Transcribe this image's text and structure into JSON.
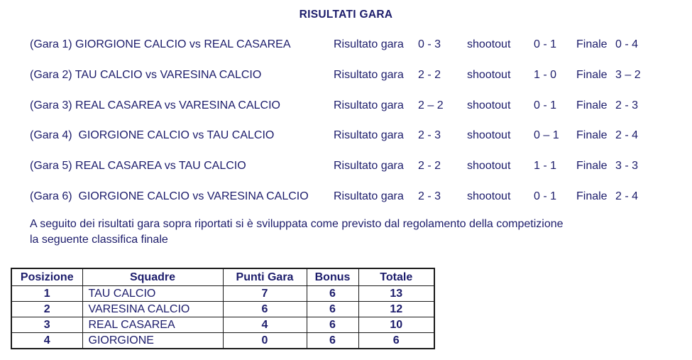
{
  "page": {
    "title": "RISULTATI GARA"
  },
  "games": [
    {
      "label": "(Gara 1) GIORGIONE CALCIO vs REAL CASAREA",
      "result_label": "Risultato gara",
      "result": "0 - 3",
      "shootout_label": "shootout",
      "shootout": "0 - 1",
      "finale_label": "Finale",
      "finale": "0 - 4"
    },
    {
      "label": "(Gara 2) TAU CALCIO vs VARESINA CALCIO",
      "result_label": "Risultato gara",
      "result": "2 - 2",
      "shootout_label": "shootout",
      "shootout": "1 - 0",
      "finale_label": "Finale",
      "finale": "3 – 2"
    },
    {
      "label": "(Gara 3) REAL CASAREA vs VARESINA CALCIO",
      "result_label": "Risultato gara",
      "result": "2 – 2",
      "shootout_label": "shootout",
      "shootout": "0 - 1",
      "finale_label": "Finale",
      "finale": "2 - 3"
    },
    {
      "label": "(Gara 4)  GIORGIONE CALCIO vs TAU CALCIO",
      "result_label": "Risultato gara",
      "result": "2 - 3",
      "shootout_label": "shootout",
      "shootout": "0 – 1",
      "finale_label": "Finale",
      "finale": "2 - 4"
    },
    {
      "label": "(Gara 5) REAL CASAREA vs TAU CALCIO",
      "result_label": "Risultato gara",
      "result": "2 - 2",
      "shootout_label": "shootout",
      "shootout": "1 - 1",
      "finale_label": "Finale",
      "finale": "3 - 3"
    },
    {
      "label": "(Gara 6)  GIORGIONE CALCIO vs VARESINA CALCIO",
      "result_label": "Risultato gara",
      "result": "2 - 3",
      "shootout_label": "shootout",
      "shootout": "0 - 1",
      "finale_label": "Finale",
      "finale": "2 - 4"
    }
  ],
  "note": {
    "line1": "A seguito dei risultati gara sopra riportati si è sviluppata come previsto dal regolamento della competizione",
    "line2": "la seguente classifica finale"
  },
  "standings": {
    "headers": [
      "Posizione",
      "Squadre",
      "Punti Gara",
      "Bonus",
      "Totale"
    ],
    "rows": [
      {
        "posizione": "1",
        "squadra": "TAU CALCIO",
        "punti": "7",
        "bonus": "6",
        "totale": "13"
      },
      {
        "posizione": "2",
        "squadra": "VARESINA CALCIO",
        "punti": "6",
        "bonus": "6",
        "totale": "12"
      },
      {
        "posizione": "3",
        "squadra": "REAL CASAREA",
        "punti": "4",
        "bonus": "6",
        "totale": "10"
      },
      {
        "posizione": "4",
        "squadra": "GIORGIONE",
        "punti": "0",
        "bonus": "6",
        "totale": "6"
      }
    ]
  },
  "colors": {
    "text": "#1c1c6b",
    "table_border": "#1a1a1a",
    "background": "#ffffff"
  }
}
